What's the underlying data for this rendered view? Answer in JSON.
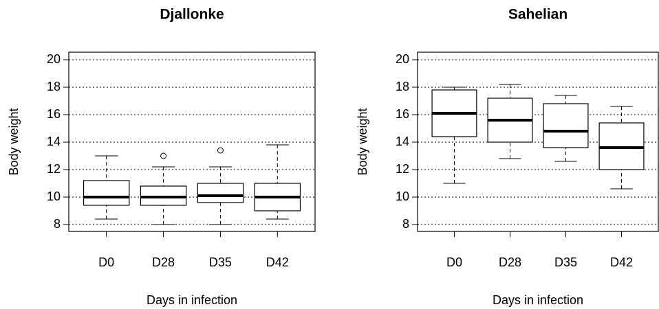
{
  "chart_data": [
    {
      "type": "box",
      "title": "Djallonke",
      "ylabel": "Body weight",
      "xlabel": "Days in infection",
      "categories": [
        "D0",
        "D28",
        "D35",
        "D42"
      ],
      "boxes": [
        {
          "min": 8.4,
          "q1": 9.4,
          "median": 10.0,
          "q3": 11.2,
          "max": 13.0
        },
        {
          "min": 8.0,
          "q1": 9.4,
          "median": 10.0,
          "q3": 10.8,
          "max": 12.2,
          "outliers": [
            13.0
          ]
        },
        {
          "min": 8.0,
          "q1": 9.6,
          "median": 10.1,
          "q3": 11.0,
          "max": 12.2,
          "outliers": [
            13.4
          ]
        },
        {
          "min": 8.4,
          "q1": 9.0,
          "median": 10.0,
          "q3": 11.0,
          "max": 13.8
        }
      ],
      "ylim": [
        7.5,
        20.55
      ],
      "yticks": [
        8,
        10,
        12,
        14,
        16,
        18,
        20
      ],
      "grid": true
    },
    {
      "type": "box",
      "title": "Sahelian",
      "ylabel": "Body weight",
      "xlabel": "Days in infection",
      "categories": [
        "D0",
        "D28",
        "D35",
        "D42"
      ],
      "boxes": [
        {
          "min": 11.0,
          "q1": 14.4,
          "median": 16.1,
          "q3": 17.8,
          "max": 18.0
        },
        {
          "min": 12.8,
          "q1": 14.0,
          "median": 15.6,
          "q3": 17.2,
          "max": 18.2
        },
        {
          "min": 12.6,
          "q1": 13.6,
          "median": 14.8,
          "q3": 16.8,
          "max": 17.4
        },
        {
          "min": 10.6,
          "q1": 12.0,
          "median": 13.6,
          "q3": 15.4,
          "max": 16.6
        }
      ],
      "ylim": [
        7.5,
        20.55
      ],
      "yticks": [
        8,
        10,
        12,
        14,
        16,
        18,
        20
      ],
      "grid": true
    }
  ]
}
